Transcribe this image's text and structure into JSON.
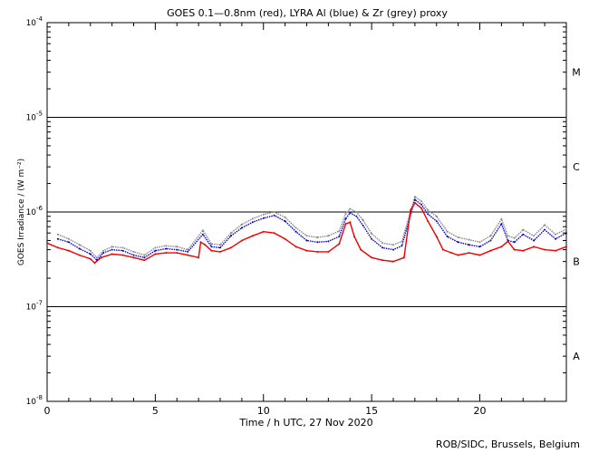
{
  "chart_data": {
    "type": "line",
    "title": "GOES 0.1—0.8nm (red), LYRA Al (blue) & Zr (grey) proxy",
    "xlabel": "Time / h UTC, 27 Nov 2020",
    "ylabel": "GOES Irradiance / (W m⁻²)",
    "credit": "ROB/SIDC, Brussels, Belgium",
    "x_range": [
      0,
      24
    ],
    "x_ticks": [
      0,
      5,
      10,
      15,
      20
    ],
    "x_tick_labels": [
      "0",
      "5",
      "10",
      "15",
      "20"
    ],
    "y_scale": "log",
    "y_range": [
      1e-08,
      0.0001
    ],
    "y_ticks": [
      1e-08,
      1e-07,
      1e-06,
      1e-05,
      0.0001
    ],
    "y_tick_labels": [
      {
        "base": "10",
        "exp": "-8"
      },
      {
        "base": "10",
        "exp": "-7"
      },
      {
        "base": "10",
        "exp": "-6"
      },
      {
        "base": "10",
        "exp": "-5"
      },
      {
        "base": "10",
        "exp": "-4"
      }
    ],
    "flare_class_lines": [
      1e-07,
      1e-06,
      1e-05
    ],
    "flare_classes": [
      {
        "label": "A",
        "y": 3e-08
      },
      {
        "label": "B",
        "y": 3e-07
      },
      {
        "label": "C",
        "y": 3e-06
      },
      {
        "label": "M",
        "y": 3e-05
      }
    ],
    "series": [
      {
        "name": "GOES 0.1-0.8nm",
        "color": "#ee0000",
        "x": [
          0,
          0.5,
          1,
          1.5,
          2,
          2.2,
          2.5,
          3,
          3.5,
          4,
          4.5,
          5,
          5.5,
          6,
          6.5,
          7,
          7.1,
          7.3,
          7.6,
          8,
          8.5,
          9,
          9.5,
          10,
          10.5,
          11,
          11.5,
          12,
          12.5,
          13,
          13.5,
          13.8,
          14,
          14.2,
          14.5,
          15,
          15.5,
          16,
          16.5,
          16.8,
          17,
          17.3,
          17.6,
          18,
          18.3,
          18.7,
          19,
          19.5,
          20,
          20.5,
          21,
          21.3,
          21.6,
          22,
          22.5,
          23,
          23.5,
          24
        ],
        "y": [
          4.7e-07,
          4.2e-07,
          3.9e-07,
          3.5e-07,
          3.2e-07,
          2.9e-07,
          3.3e-07,
          3.6e-07,
          3.5e-07,
          3.3e-07,
          3.1e-07,
          3.6e-07,
          3.7e-07,
          3.7e-07,
          3.5e-07,
          3.3e-07,
          4.8e-07,
          4.5e-07,
          3.9e-07,
          3.8e-07,
          4.2e-07,
          5e-07,
          5.6e-07,
          6.2e-07,
          6e-07,
          5.2e-07,
          4.3e-07,
          3.9e-07,
          3.8e-07,
          3.8e-07,
          4.6e-07,
          7.5e-07,
          7.8e-07,
          5.5e-07,
          4e-07,
          3.3e-07,
          3.1e-07,
          3e-07,
          3.3e-07,
          1.05e-06,
          1.25e-06,
          1.1e-06,
          8e-07,
          5.5e-07,
          4e-07,
          3.7e-07,
          3.5e-07,
          3.7e-07,
          3.5e-07,
          3.9e-07,
          4.3e-07,
          4.9e-07,
          4e-07,
          3.9e-07,
          4.3e-07,
          4e-07,
          3.9e-07,
          4.3e-07
        ]
      },
      {
        "name": "LYRA Al proxy",
        "color": "#0000cc",
        "x": [
          0.5,
          1,
          1.5,
          2,
          2.3,
          2.6,
          3,
          3.5,
          4,
          4.5,
          5,
          5.5,
          6,
          6.5,
          7.2,
          7.6,
          8,
          8.5,
          9,
          9.5,
          10,
          10.5,
          11,
          11.5,
          12,
          12.5,
          13,
          13.5,
          13.8,
          14,
          14.3,
          14.6,
          15,
          15.5,
          16,
          16.4,
          17,
          17.3,
          17.6,
          18,
          18.5,
          19,
          19.5,
          20,
          20.5,
          21,
          21.3,
          21.6,
          22,
          22.5,
          23,
          23.5,
          24
        ],
        "y": [
          5.2e-07,
          4.8e-07,
          4.1e-07,
          3.6e-07,
          3.1e-07,
          3.7e-07,
          4e-07,
          3.9e-07,
          3.5e-07,
          3.3e-07,
          3.9e-07,
          4.1e-07,
          4e-07,
          3.8e-07,
          5.8e-07,
          4.3e-07,
          4.2e-07,
          5.6e-07,
          6.8e-07,
          7.8e-07,
          8.6e-07,
          9.2e-07,
          8e-07,
          6.2e-07,
          5e-07,
          4.8e-07,
          4.9e-07,
          5.5e-07,
          8.5e-07,
          9.8e-07,
          9e-07,
          7.2e-07,
          5.2e-07,
          4.2e-07,
          4e-07,
          4.4e-07,
          1.35e-06,
          1.2e-06,
          9.5e-07,
          8e-07,
          5.5e-07,
          4.8e-07,
          4.5e-07,
          4.3e-07,
          5e-07,
          7.5e-07,
          5e-07,
          4.8e-07,
          5.8e-07,
          5e-07,
          6.5e-07,
          5.2e-07,
          6e-07
        ]
      },
      {
        "name": "LYRA Zr proxy",
        "color": "#888888",
        "x": [
          0.5,
          1,
          1.5,
          2,
          2.3,
          2.6,
          3,
          3.5,
          4,
          4.5,
          5,
          5.5,
          6,
          6.5,
          7.2,
          7.6,
          8,
          8.5,
          9,
          9.5,
          10,
          10.5,
          11,
          11.5,
          12,
          12.5,
          13,
          13.5,
          13.8,
          14,
          14.3,
          14.6,
          15,
          15.5,
          16,
          16.4,
          17,
          17.3,
          17.6,
          18,
          18.5,
          19,
          19.5,
          20,
          20.5,
          21,
          21.3,
          21.6,
          22,
          22.5,
          23,
          23.5,
          24
        ],
        "y": [
          5.8e-07,
          5.2e-07,
          4.5e-07,
          3.9e-07,
          3.3e-07,
          3.9e-07,
          4.3e-07,
          4.2e-07,
          3.8e-07,
          3.5e-07,
          4.2e-07,
          4.4e-07,
          4.3e-07,
          4e-07,
          6.4e-07,
          4.6e-07,
          4.5e-07,
          6e-07,
          7.4e-07,
          8.5e-07,
          9.4e-07,
          1e-06,
          8.8e-07,
          6.8e-07,
          5.6e-07,
          5.4e-07,
          5.6e-07,
          6.3e-07,
          9.6e-07,
          1.08e-06,
          1e-06,
          8.2e-07,
          5.9e-07,
          4.7e-07,
          4.5e-07,
          4.9e-07,
          1.45e-06,
          1.3e-06,
          1.05e-06,
          9e-07,
          6.2e-07,
          5.4e-07,
          5.1e-07,
          4.8e-07,
          5.6e-07,
          8.4e-07,
          5.6e-07,
          5.3e-07,
          6.5e-07,
          5.6e-07,
          7.3e-07,
          5.8e-07,
          6.6e-07
        ]
      }
    ]
  }
}
